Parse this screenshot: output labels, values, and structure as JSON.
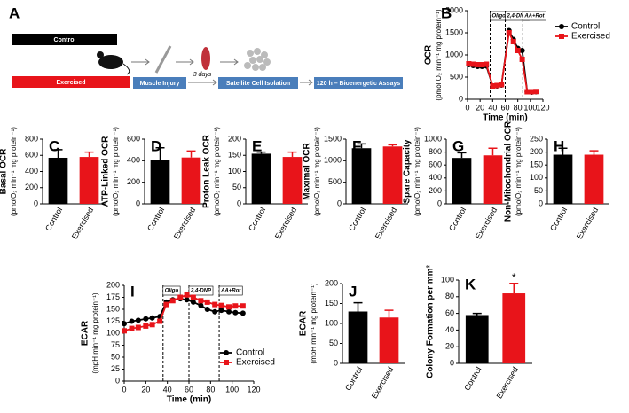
{
  "diagram": {
    "label": "A",
    "groups": [
      "Control",
      "Exercised"
    ],
    "steps": [
      "Muscle Injury",
      "Satellite Cell Isolation",
      "120 h – Bioenergetic Assays"
    ],
    "interval": "3 days"
  },
  "chart_data": [
    {
      "type": "line",
      "panel": "B",
      "ylabel": [
        "OCR",
        "(pmol O₂  min⁻¹  mg protein⁻¹)"
      ],
      "xlabel": "Time (min)",
      "x": [
        2,
        9,
        16,
        23,
        30,
        40,
        47,
        54,
        66,
        73,
        80,
        87,
        95,
        102,
        109
      ],
      "series": [
        {
          "name": "Control",
          "color": "#000000",
          "marker": "circle",
          "values": [
            780,
            760,
            740,
            740,
            750,
            300,
            300,
            320,
            1550,
            1350,
            1150,
            1100,
            170,
            160,
            170
          ]
        },
        {
          "name": "Exercised",
          "color": "#e8141a",
          "marker": "square",
          "values": [
            800,
            790,
            780,
            780,
            790,
            300,
            310,
            330,
            1500,
            1300,
            1100,
            900,
            170,
            170,
            175
          ]
        }
      ],
      "annotations": [
        {
          "text": "Oligo",
          "x": 36
        },
        {
          "text": "2,4-DNP",
          "x": 60
        },
        {
          "text": "AA+Rot",
          "x": 88
        }
      ],
      "xlim": [
        0,
        120
      ],
      "xticks": [
        0,
        20,
        40,
        60,
        80,
        100,
        120
      ],
      "ylim": [
        0,
        2000
      ],
      "yticks": [
        0,
        500,
        1000,
        1500,
        2000
      ],
      "legend": "upper right"
    },
    {
      "type": "bar",
      "panel": "C",
      "ylabel": [
        "Basal OCR",
        "(pmolO₂  min⁻¹  mg protein⁻¹)"
      ],
      "categories": [
        "Control",
        "Exercised"
      ],
      "values": [
        570,
        580
      ],
      "errors": [
        100,
        60
      ],
      "colors": [
        "#000000",
        "#e8141a"
      ],
      "ylim": [
        0,
        800
      ],
      "yticks": [
        0,
        200,
        400,
        600,
        800
      ]
    },
    {
      "type": "bar",
      "panel": "D",
      "ylabel": [
        "ATP-Linked OCR",
        "(pmolO₂  min⁻¹  mg protein⁻¹)"
      ],
      "categories": [
        "Control",
        "Exercised"
      ],
      "values": [
        410,
        430
      ],
      "errors": [
        110,
        60
      ],
      "colors": [
        "#000000",
        "#e8141a"
      ],
      "ylim": [
        0,
        600
      ],
      "yticks": [
        0,
        200,
        400,
        600
      ]
    },
    {
      "type": "bar",
      "panel": "E",
      "ylabel": [
        "Proton Leak OCR",
        "(pmolO₂  min⁻¹  mg protein⁻¹)"
      ],
      "categories": [
        "Control",
        "Exercised"
      ],
      "values": [
        155,
        145
      ],
      "errors": [
        5,
        15
      ],
      "colors": [
        "#000000",
        "#e8141a"
      ],
      "ylim": [
        0,
        200
      ],
      "yticks": [
        0,
        50,
        100,
        150,
        200
      ]
    },
    {
      "type": "bar",
      "panel": "F",
      "ylabel": [
        "Maximal OCR",
        "(pmolO₂  min⁻¹  mg protein⁻¹)"
      ],
      "categories": [
        "Control",
        "Exercised"
      ],
      "values": [
        1290,
        1330
      ],
      "errors": [
        100,
        40
      ],
      "colors": [
        "#000000",
        "#e8141a"
      ],
      "ylim": [
        0,
        1500
      ],
      "yticks": [
        0,
        500,
        1000,
        1500
      ]
    },
    {
      "type": "bar",
      "panel": "G",
      "ylabel": [
        "Spare Capacity",
        "(pmolO₂  min⁻¹  mg protein⁻¹)"
      ],
      "categories": [
        "Control",
        "Exercised"
      ],
      "values": [
        710,
        750
      ],
      "errors": [
        80,
        110
      ],
      "colors": [
        "#000000",
        "#e8141a"
      ],
      "ylim": [
        0,
        1000
      ],
      "yticks": [
        0,
        200,
        400,
        600,
        800,
        1000
      ]
    },
    {
      "type": "bar",
      "panel": "H",
      "ylabel": [
        "Non-Mitochondrial OCR",
        "(pmolO₂  min⁻¹  mg protein⁻¹)"
      ],
      "categories": [
        "Control",
        "Exercised"
      ],
      "values": [
        190,
        190
      ],
      "errors": [
        25,
        15
      ],
      "colors": [
        "#000000",
        "#e8141a"
      ],
      "ylim": [
        0,
        250
      ],
      "yticks": [
        0,
        50,
        100,
        150,
        200,
        250
      ]
    },
    {
      "type": "line",
      "panel": "I",
      "ylabel": [
        "ECAR",
        "(mpH  min⁻¹  mg protein⁻¹)"
      ],
      "xlabel": "Time (min)",
      "x": [
        0,
        7,
        13,
        20,
        26,
        33,
        39,
        45,
        52,
        58,
        64,
        71,
        77,
        84,
        90,
        97,
        103,
        110
      ],
      "series": [
        {
          "name": "Control",
          "color": "#000000",
          "marker": "circle",
          "values": [
            120,
            125,
            127,
            130,
            132,
            135,
            165,
            170,
            172,
            170,
            165,
            158,
            150,
            145,
            148,
            145,
            143,
            142
          ]
        },
        {
          "name": "Exercised",
          "color": "#e8141a",
          "marker": "square",
          "values": [
            105,
            110,
            112,
            115,
            118,
            125,
            160,
            168,
            175,
            180,
            175,
            168,
            165,
            160,
            158,
            155,
            157,
            157
          ]
        }
      ],
      "annotations": [
        {
          "text": "Oligo",
          "x": 36
        },
        {
          "text": "2,4-DNP",
          "x": 60
        },
        {
          "text": "AA+Rot",
          "x": 88
        }
      ],
      "xlim": [
        0,
        120
      ],
      "xticks": [
        0,
        20,
        40,
        60,
        80,
        100,
        120
      ],
      "ylim": [
        0,
        200
      ],
      "yticks": [
        0,
        25,
        50,
        75,
        100,
        125,
        150,
        175,
        200
      ],
      "legend": "lower right"
    },
    {
      "type": "bar",
      "panel": "J",
      "ylabel": [
        "ECAR",
        "(mpH  min⁻¹  mg protein⁻¹)"
      ],
      "categories": [
        "Control",
        "Exercised"
      ],
      "values": [
        130,
        115
      ],
      "errors": [
        22,
        18
      ],
      "colors": [
        "#000000",
        "#e8141a"
      ],
      "ylim": [
        0,
        200
      ],
      "yticks": [
        0,
        50,
        100,
        150,
        200
      ]
    },
    {
      "type": "bar",
      "panel": "K",
      "ylabel": [
        "Colony Formation per mm²"
      ],
      "categories": [
        "Control",
        "Exercised"
      ],
      "values": [
        58,
        84
      ],
      "errors": [
        2,
        12
      ],
      "significance": [
        null,
        "*"
      ],
      "colors": [
        "#000000",
        "#e8141a"
      ],
      "ylim": [
        0,
        100
      ],
      "yticks": [
        0,
        20,
        40,
        60,
        80,
        100
      ]
    }
  ]
}
